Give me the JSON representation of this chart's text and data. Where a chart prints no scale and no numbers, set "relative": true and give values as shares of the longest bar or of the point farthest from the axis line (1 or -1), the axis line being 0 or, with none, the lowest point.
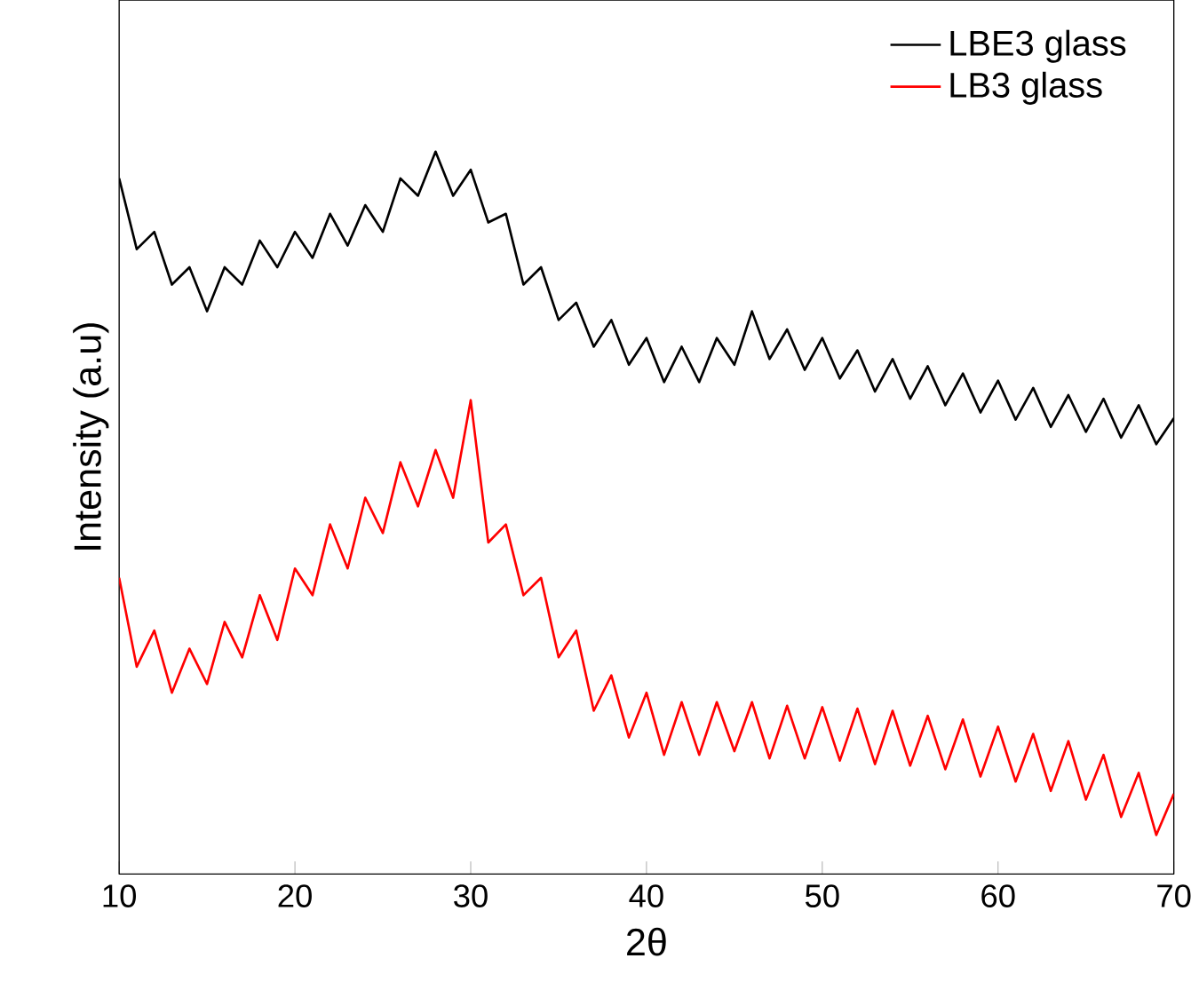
{
  "chart_data": {
    "type": "line",
    "xlabel": "2θ",
    "ylabel": "Intensity (a.u)",
    "relative": true,
    "xlim": [
      10,
      70
    ],
    "xticks": [
      10,
      20,
      30,
      40,
      50,
      60,
      70
    ],
    "legend": "top right",
    "x": [
      10,
      11,
      12,
      13,
      14,
      15,
      16,
      17,
      18,
      19,
      20,
      21,
      22,
      23,
      24,
      25,
      26,
      27,
      28,
      29,
      30,
      31,
      32,
      33,
      34,
      35,
      36,
      37,
      38,
      39,
      40,
      41,
      42,
      43,
      44,
      45,
      46,
      47,
      48,
      49,
      50,
      51,
      52,
      53,
      54,
      55,
      56,
      57,
      58,
      59,
      60,
      61,
      62,
      63,
      64,
      65,
      66,
      67,
      68,
      69,
      70
    ],
    "series": [
      {
        "name": "LBE3 glass",
        "color": "#000000",
        "values": [
          0.963,
          0.865,
          0.889,
          0.816,
          0.84,
          0.779,
          0.84,
          0.816,
          0.877,
          0.84,
          0.889,
          0.853,
          0.914,
          0.87,
          0.926,
          0.889,
          0.963,
          0.939,
          1.0,
          0.939,
          0.975,
          0.902,
          0.914,
          0.816,
          0.84,
          0.767,
          0.791,
          0.73,
          0.767,
          0.705,
          0.742,
          0.681,
          0.73,
          0.681,
          0.742,
          0.705,
          0.779,
          0.713,
          0.754,
          0.698,
          0.742,
          0.686,
          0.725,
          0.668,
          0.713,
          0.658,
          0.703,
          0.649,
          0.693,
          0.639,
          0.683,
          0.629,
          0.673,
          0.619,
          0.663,
          0.612,
          0.658,
          0.604,
          0.649,
          0.595,
          0.631
        ]
      },
      {
        "name": "LB3 glass",
        "color": "#ff0000",
        "values": [
          0.41,
          0.287,
          0.337,
          0.251,
          0.312,
          0.263,
          0.349,
          0.3,
          0.386,
          0.324,
          0.423,
          0.386,
          0.484,
          0.423,
          0.521,
          0.472,
          0.57,
          0.509,
          0.587,
          0.521,
          0.656,
          0.459,
          0.484,
          0.386,
          0.41,
          0.3,
          0.337,
          0.226,
          0.275,
          0.189,
          0.251,
          0.165,
          0.238,
          0.165,
          0.238,
          0.17,
          0.238,
          0.16,
          0.233,
          0.16,
          0.231,
          0.157,
          0.229,
          0.152,
          0.226,
          0.15,
          0.219,
          0.145,
          0.214,
          0.135,
          0.204,
          0.128,
          0.194,
          0.115,
          0.184,
          0.103,
          0.165,
          0.079,
          0.14,
          0.054,
          0.111
        ]
      }
    ]
  }
}
